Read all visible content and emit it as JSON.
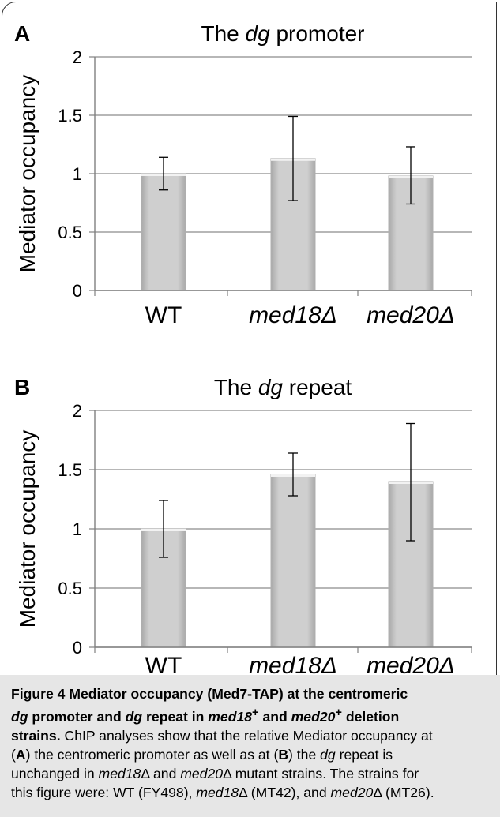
{
  "colors": {
    "bar": "#c8c8c8",
    "bar_edge": "#b0b0b0",
    "axis": "#808080",
    "grid": "#8c8c8c",
    "caption_bg": "#e6e6e6"
  },
  "chart_data": [
    {
      "type": "bar",
      "panel": "A",
      "title_parts": [
        "The ",
        "dg",
        " promoter"
      ],
      "categories": [
        "WT",
        "med18Δ",
        "med20Δ"
      ],
      "values": [
        1.0,
        1.13,
        0.98
      ],
      "errors": [
        [
          0.86,
          1.14
        ],
        [
          0.77,
          1.49
        ],
        [
          0.74,
          1.23
        ]
      ],
      "ylabel": "Mediator occupancy",
      "ylim": [
        0,
        2
      ],
      "yticks": [
        "0",
        "0.5",
        "1",
        "1.5",
        "2"
      ],
      "grid": true
    },
    {
      "type": "bar",
      "panel": "B",
      "title_parts": [
        "The ",
        "dg",
        " repeat"
      ],
      "categories": [
        "WT",
        "med18Δ",
        "med20Δ"
      ],
      "values": [
        1.0,
        1.46,
        1.4
      ],
      "errors": [
        [
          0.76,
          1.24
        ],
        [
          1.28,
          1.64
        ],
        [
          0.9,
          1.89
        ]
      ],
      "ylabel": "Mediator occupancy",
      "ylim": [
        0,
        2
      ],
      "yticks": [
        "0",
        "0.5",
        "1",
        "1.5",
        "2"
      ],
      "grid": true
    }
  ],
  "caption": {
    "figure_label": "Figure 4",
    "title_text": "Mediator occupancy (Med7-TAP) at the centromeric",
    "title_line2": [
      "dg",
      " promoter and ",
      "dg",
      " repeat in ",
      "med18",
      "+",
      " and ",
      "med20",
      "+",
      " deletion"
    ],
    "title_line3": "strains.",
    "body": [
      [
        " ChIP analyses show that the relative Mediator occupancy at"
      ],
      [
        "(",
        "A",
        ") the centromeric promoter as well as at (",
        "B",
        ") the ",
        "dg",
        " repeat is"
      ],
      [
        "unchanged in ",
        "med18",
        "Δ",
        " and ",
        "med20",
        "Δ",
        " mutant strains. The strains for"
      ],
      [
        "this figure were: WT (FY498), ",
        "med18",
        "Δ",
        " (MT42), and ",
        "med20",
        "Δ",
        " (MT26)."
      ]
    ]
  }
}
